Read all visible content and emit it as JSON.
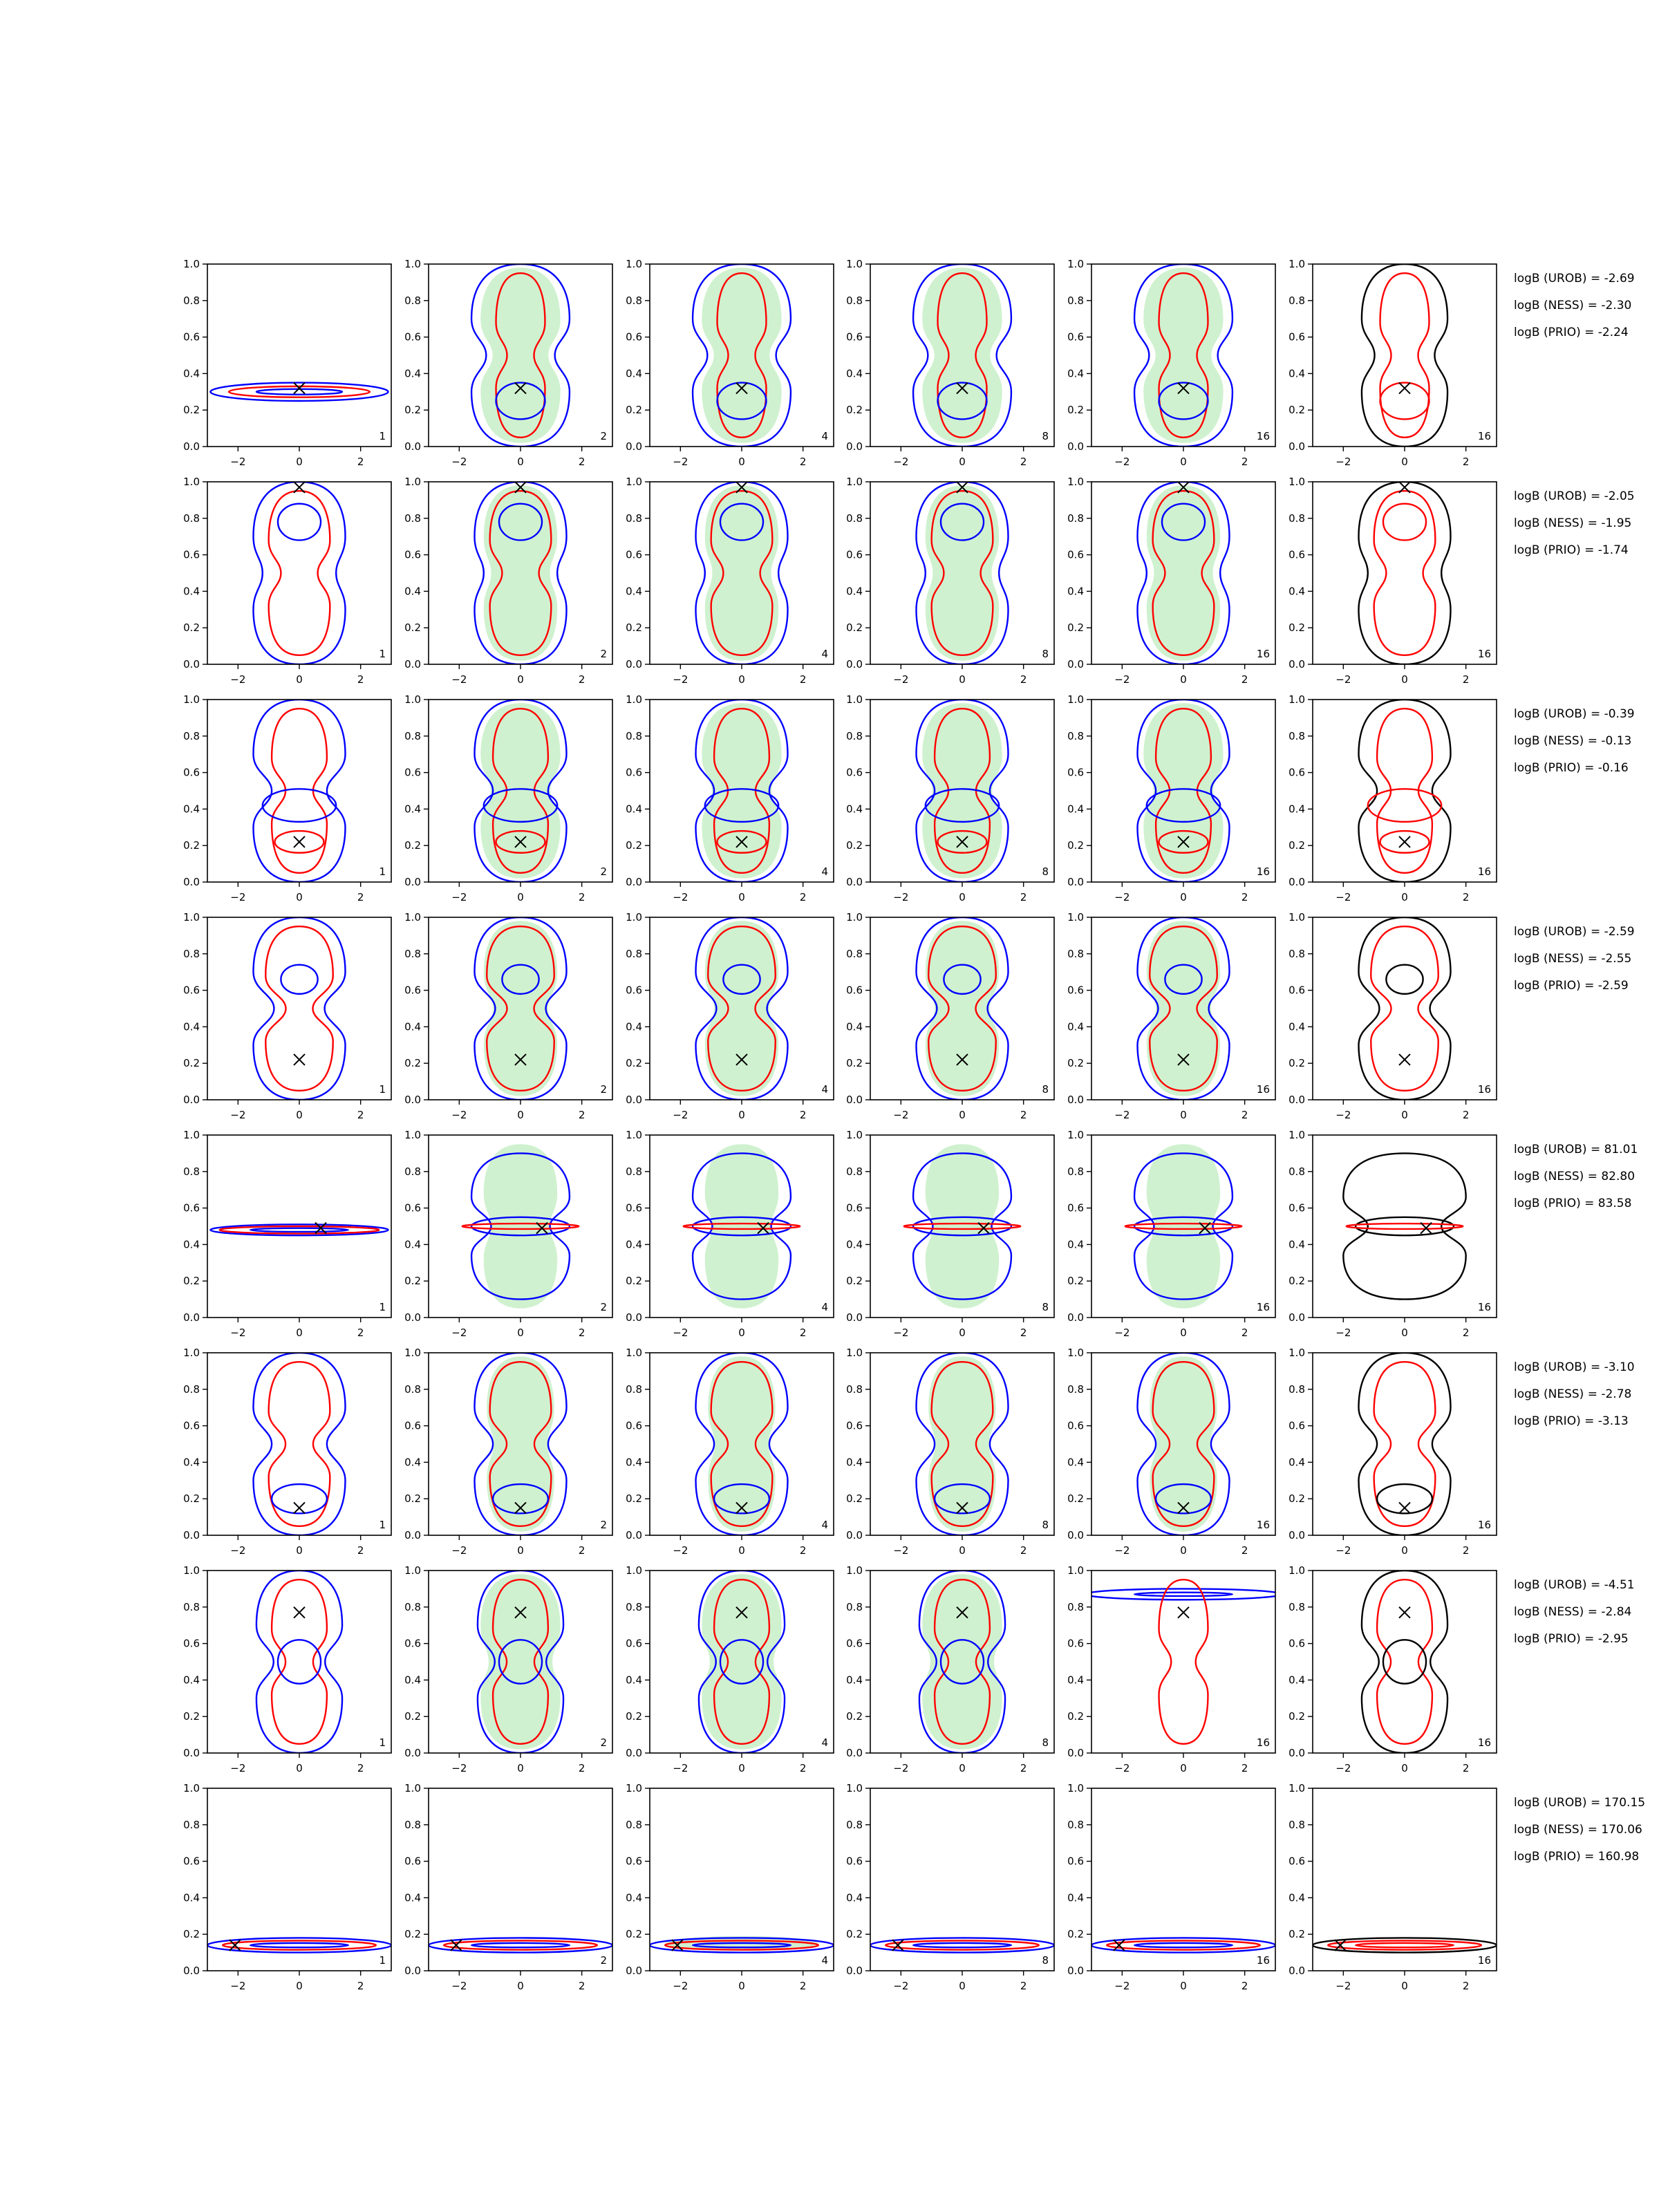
{
  "chart_data": {
    "type": "contour-grid",
    "rows": 8,
    "cols": 6,
    "xlim": [
      -3,
      3
    ],
    "ylim": [
      0,
      1
    ],
    "xticks": [
      "−2",
      "0",
      "2"
    ],
    "yticks": [
      "0.0",
      "0.2",
      "0.4",
      "0.6",
      "0.8",
      "1.0"
    ],
    "panel_counts": [
      "1",
      "2",
      "4",
      "8",
      "16",
      "16"
    ],
    "colors": {
      "blue": "#0000ff",
      "red": "#ff0000",
      "black": "#000000",
      "fill": "#a8e6a8",
      "fill_dark": "#8fb58f"
    },
    "rows_data": [
      {
        "logB": [
          "logB (UROB) = -2.69",
          "logB (NESS) = -2.30",
          "logB (PRIO) = -2.24"
        ],
        "marker": [
          0,
          0.32
        ]
      },
      {
        "logB": [
          "logB (UROB) = -2.05",
          "logB (NESS) = -1.95",
          "logB (PRIO) = -1.74"
        ],
        "marker": [
          0,
          0.97
        ]
      },
      {
        "logB": [
          "logB (UROB) = -0.39",
          "logB (NESS) = -0.13",
          "logB (PRIO) = -0.16"
        ],
        "marker": [
          0,
          0.22
        ]
      },
      {
        "logB": [
          "logB (UROB) = -2.59",
          "logB (NESS) = -2.55",
          "logB (PRIO) = -2.59"
        ],
        "marker": [
          0,
          0.22
        ]
      },
      {
        "logB": [
          "logB (UROB) = 81.01",
          "logB (NESS) = 82.80",
          "logB (PRIO) = 83.58"
        ],
        "marker": [
          0.7,
          0.49
        ]
      },
      {
        "logB": [
          "logB (UROB) = -3.10",
          "logB (NESS) = -2.78",
          "logB (PRIO) = -3.13"
        ],
        "marker": [
          0,
          0.15
        ]
      },
      {
        "logB": [
          "logB (UROB) = -4.51",
          "logB (NESS) = -2.84",
          "logB (PRIO) = -2.95"
        ],
        "marker": [
          0,
          0.77
        ]
      },
      {
        "logB": [
          "logB (UROB) = 170.15",
          "logB (NESS) = 170.06",
          "logB (PRIO) = 160.98"
        ],
        "marker": [
          -2.1,
          0.14
        ]
      }
    ]
  }
}
